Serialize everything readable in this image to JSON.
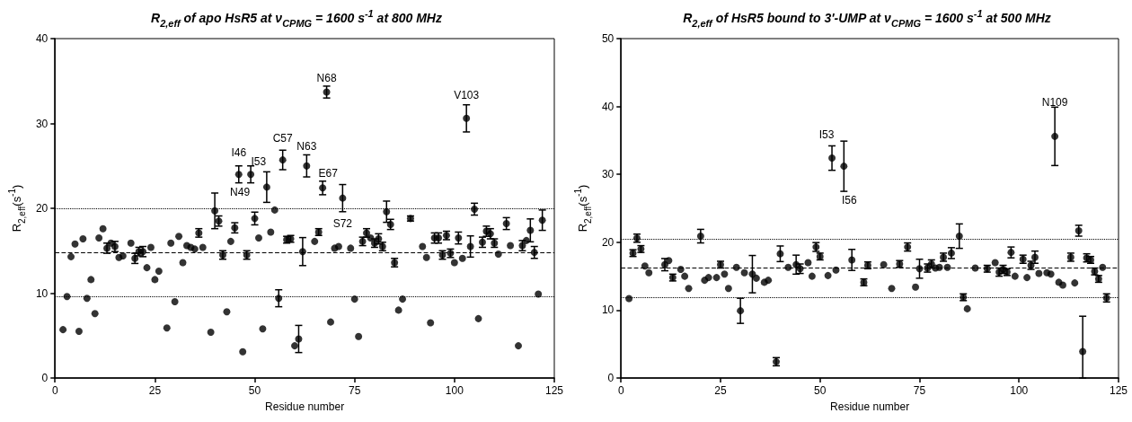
{
  "chart_data": [
    {
      "type": "scatter",
      "title": "R$_{2,eff}$ of apo HsR5 at ν$_{CPMG}$ = 1600 s$^{-1}$ at 800 MHz",
      "xlabel": "Residue number",
      "ylabel": "R$_{2,eff}$(s$^{-1}$)",
      "xlim": [
        0,
        125
      ],
      "xticks": [
        0,
        25,
        50,
        75,
        100,
        125
      ],
      "ylim": [
        0,
        40
      ],
      "yticks": [
        0,
        10,
        20,
        30,
        40
      ],
      "marker": "circle",
      "color": "#000000",
      "x": [
        2,
        3,
        4,
        5,
        6,
        7,
        8,
        9,
        10,
        11,
        12,
        13,
        14,
        15,
        16,
        17,
        19,
        20,
        21,
        22,
        23,
        24,
        25,
        26,
        28,
        29,
        30,
        31,
        32,
        33,
        34,
        35,
        36,
        37,
        39,
        40,
        41,
        42,
        43,
        44,
        45,
        46,
        47,
        48,
        49,
        50,
        51,
        52,
        53,
        54,
        55,
        56,
        57,
        58,
        59,
        60,
        61,
        62,
        63,
        65,
        66,
        67,
        68,
        69,
        70,
        71,
        72,
        74,
        75,
        76,
        77,
        78,
        79,
        80,
        81,
        82,
        83,
        84,
        85,
        86,
        87,
        89,
        92,
        93,
        94,
        95,
        96,
        97,
        98,
        99,
        100,
        101,
        102,
        103,
        104,
        105,
        106,
        107,
        108,
        109,
        110,
        111,
        113,
        114,
        116,
        117,
        118,
        119,
        120,
        121,
        122
      ],
      "values": [
        5.7,
        9.6,
        14.3,
        15.8,
        5.5,
        16.4,
        9.4,
        11.6,
        7.6,
        16.5,
        17.6,
        15.3,
        15.9,
        15.5,
        14.2,
        14.4,
        15.9,
        14.1,
        14.9,
        14.9,
        13.0,
        15.4,
        11.6,
        12.6,
        5.9,
        15.9,
        9.0,
        16.7,
        13.6,
        15.6,
        15.4,
        15.2,
        17.1,
        15.4,
        5.4,
        19.7,
        18.5,
        14.5,
        7.8,
        16.1,
        17.7,
        24.0,
        3.1,
        14.5,
        24.0,
        18.8,
        16.5,
        5.8,
        22.5,
        17.2,
        19.8,
        9.4,
        25.7,
        16.3,
        16.4,
        3.8,
        4.6,
        14.9,
        25.0,
        16.1,
        17.2,
        22.4,
        33.7,
        6.6,
        15.3,
        15.5,
        21.2,
        15.3,
        9.3,
        4.9,
        16.1,
        17.1,
        16.5,
        15.9,
        16.4,
        15.5,
        19.6,
        18.1,
        13.6,
        8.0,
        9.3,
        18.8,
        15.5,
        14.2,
        6.5,
        16.5,
        16.5,
        14.5,
        16.8,
        14.7,
        13.6,
        16.5,
        14.1,
        30.6,
        15.5,
        19.9,
        7.0,
        16.0,
        17.3,
        17.0,
        15.9,
        14.6,
        18.2,
        15.6,
        3.8,
        15.6,
        16.2,
        17.4,
        14.8,
        9.9,
        18.6
      ],
      "errors": [
        null,
        null,
        null,
        null,
        null,
        null,
        null,
        null,
        null,
        null,
        null,
        0.6,
        null,
        0.6,
        null,
        null,
        null,
        0.6,
        0.5,
        0.6,
        null,
        null,
        null,
        null,
        null,
        null,
        null,
        null,
        null,
        null,
        null,
        null,
        0.5,
        null,
        null,
        2.1,
        0.6,
        0.5,
        null,
        null,
        0.6,
        1.0,
        null,
        0.5,
        1.0,
        0.75,
        null,
        null,
        1.8,
        null,
        null,
        1.0,
        1.15,
        0.4,
        0.4,
        null,
        1.6,
        1.65,
        1.3,
        null,
        0.4,
        0.8,
        0.7,
        null,
        null,
        null,
        1.6,
        null,
        null,
        null,
        0.5,
        0.5,
        null,
        0.5,
        0.6,
        0.5,
        1.25,
        0.6,
        0.5,
        null,
        null,
        0.3,
        null,
        null,
        null,
        0.6,
        0.6,
        0.5,
        0.5,
        0.5,
        null,
        0.7,
        null,
        1.6,
        1.25,
        0.7,
        null,
        0.6,
        0.6,
        0.6,
        0.5,
        null,
        0.7,
        null,
        null,
        0.6,
        null,
        1.35,
        0.7,
        null,
        1.2
      ],
      "ref_lines": [
        {
          "axis": "y",
          "value": 14.8,
          "line_style": "dashed"
        },
        {
          "axis": "y",
          "value": 20.0,
          "line_style": "dotted"
        },
        {
          "axis": "y",
          "value": 9.6,
          "line_style": "dotted"
        }
      ],
      "annotations": [
        {
          "text": "I46",
          "x": 46,
          "y": 24.0
        },
        {
          "text": "N49",
          "x": 49,
          "y": 24.0
        },
        {
          "text": "I53",
          "x": 53,
          "y": 22.5
        },
        {
          "text": "C57",
          "x": 57,
          "y": 25.7
        },
        {
          "text": "N63",
          "x": 63,
          "y": 25.0
        },
        {
          "text": "N68",
          "x": 68,
          "y": 33.7
        },
        {
          "text": "E67",
          "x": 67,
          "y": 22.4
        },
        {
          "text": "S72",
          "x": 72,
          "y": 21.2
        },
        {
          "text": "V103",
          "x": 103,
          "y": 30.6
        }
      ]
    },
    {
      "type": "scatter",
      "title": "R$_{2,eff}$ of HsR5 bound to 3'-UMP at ν$_{CPMG}$ = 1600 s$^{-1}$ at 500 MHz",
      "xlabel": "Residue number",
      "ylabel": "R$_{2,eff}$(s$^{-1}$)",
      "xlim": [
        0,
        125
      ],
      "xticks": [
        0,
        25,
        50,
        75,
        100,
        125
      ],
      "ylim": [
        0,
        50
      ],
      "yticks": [
        0,
        10,
        20,
        30,
        40,
        50
      ],
      "marker": "circle",
      "color": "#000000",
      "x": [
        2,
        3,
        4,
        5,
        6,
        7,
        11,
        12,
        13,
        15,
        16,
        17,
        20,
        21,
        22,
        24,
        25,
        26,
        27,
        29,
        30,
        31,
        33,
        34,
        36,
        37,
        39,
        40,
        42,
        44,
        45,
        47,
        48,
        49,
        50,
        52,
        53,
        54,
        56,
        58,
        61,
        62,
        66,
        68,
        70,
        72,
        74,
        75,
        77,
        78,
        79,
        80,
        81,
        82,
        83,
        85,
        86,
        87,
        89,
        92,
        94,
        95,
        96,
        97,
        98,
        99,
        101,
        102,
        103,
        104,
        105,
        107,
        108,
        109,
        110,
        111,
        113,
        114,
        115,
        116,
        117,
        118,
        119,
        120,
        121,
        122
      ],
      "values": [
        11.7,
        18.4,
        20.6,
        19.0,
        16.5,
        15.5,
        16.7,
        17.3,
        14.8,
        16.0,
        15.0,
        13.2,
        20.9,
        14.4,
        14.8,
        14.8,
        16.7,
        15.3,
        13.2,
        16.3,
        9.9,
        15.5,
        15.3,
        14.7,
        14.1,
        14.4,
        2.4,
        18.3,
        16.3,
        16.7,
        16.1,
        17.0,
        15.0,
        19.3,
        17.9,
        15.1,
        32.4,
        15.9,
        31.2,
        17.4,
        14.1,
        16.6,
        16.7,
        13.2,
        16.8,
        19.3,
        13.4,
        16.1,
        16.2,
        16.8,
        16.2,
        16.3,
        17.8,
        16.3,
        18.4,
        20.9,
        11.9,
        10.2,
        16.2,
        16.1,
        17.0,
        15.6,
        16.0,
        15.6,
        18.5,
        15.0,
        17.5,
        14.8,
        16.6,
        17.8,
        15.4,
        15.5,
        15.3,
        35.6,
        14.1,
        13.7,
        17.8,
        14.0,
        21.7,
        3.9,
        17.7,
        17.4,
        15.7,
        14.6,
        16.3,
        11.8
      ],
      "errors": [
        null,
        0.5,
        0.6,
        0.5,
        null,
        null,
        0.9,
        null,
        0.5,
        null,
        null,
        null,
        1.0,
        null,
        null,
        null,
        0.5,
        null,
        null,
        null,
        1.85,
        null,
        2.75,
        null,
        null,
        null,
        0.6,
        1.15,
        null,
        1.4,
        0.7,
        null,
        null,
        0.65,
        0.5,
        null,
        1.8,
        null,
        3.7,
        1.55,
        0.5,
        0.5,
        null,
        null,
        0.5,
        0.6,
        null,
        1.4,
        0.6,
        0.6,
        null,
        null,
        0.6,
        null,
        0.8,
        1.8,
        0.5,
        null,
        null,
        0.5,
        null,
        0.6,
        0.6,
        0.5,
        0.8,
        null,
        0.6,
        null,
        0.6,
        0.9,
        null,
        null,
        null,
        4.3,
        null,
        null,
        0.6,
        null,
        0.8,
        [
          0,
          9.1
        ],
        0.6,
        0.5,
        0.5,
        0.5,
        null,
        0.6
      ],
      "ref_lines": [
        {
          "axis": "y",
          "value": 16.3,
          "line_style": "dashed"
        },
        {
          "axis": "y",
          "value": 20.5,
          "line_style": "dotted"
        },
        {
          "axis": "y",
          "value": 11.9,
          "line_style": "dotted"
        }
      ],
      "annotations": [
        {
          "text": "I53",
          "x": 53,
          "y": 32.4
        },
        {
          "text": "I56",
          "x": 56,
          "y": 31.2
        },
        {
          "text": "N109",
          "x": 109,
          "y": 35.6
        }
      ]
    }
  ]
}
